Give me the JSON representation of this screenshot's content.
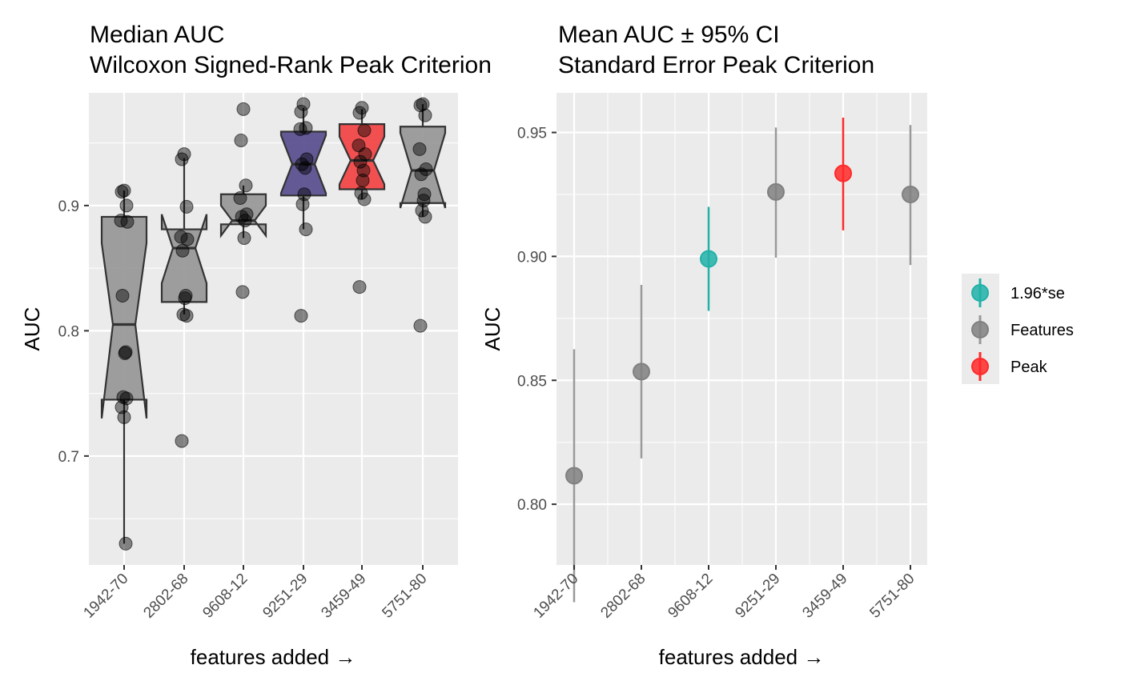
{
  "colors": {
    "panel_bg": "#EBEBEB",
    "grid": "#FFFFFF",
    "box_default": "#999999",
    "box_selected": "#5C5290",
    "box_peak": "#F24848",
    "point": "#000000",
    "se_color": "#21B1A8",
    "features_color": "#808080",
    "peak_color": "#FF2A2A",
    "text": "#000000",
    "tick_text": "#4D4D4D"
  },
  "chart_data": [
    {
      "type": "box",
      "title": "Median AUC",
      "subtitle": "Wilcoxon Signed-Rank Peak Criterion",
      "xlabel": "features added →",
      "ylabel": "AUC",
      "categories": [
        "1942-70",
        "2802-68",
        "9608-12",
        "9251-29",
        "3459-49",
        "5751-80"
      ],
      "ylim": [
        0.613,
        0.99
      ],
      "yticks": [
        0.7,
        0.8,
        0.9
      ],
      "ytick_labels": [
        "0.7",
        "0.8",
        "0.9"
      ],
      "grid": true,
      "boxes": [
        {
          "category": "1942-70",
          "q1": 0.745,
          "median": 0.805,
          "q3": 0.891,
          "notch_low": 0.73,
          "notch_high": 0.87,
          "whisker_low": 0.63,
          "whisker_high": 0.912,
          "highlight": "none"
        },
        {
          "category": "2802-68",
          "q1": 0.823,
          "median": 0.866,
          "q3": 0.881,
          "notch_low": 0.838,
          "notch_high": 0.893,
          "whisker_low": 0.813,
          "whisker_high": 0.938,
          "highlight": "none"
        },
        {
          "category": "9608-12",
          "q1": 0.885,
          "median": 0.888,
          "q3": 0.909,
          "notch_low": 0.876,
          "notch_high": 0.9,
          "whisker_low": 0.874,
          "whisker_high": 0.916,
          "highlight": "none"
        },
        {
          "category": "9251-29",
          "q1": 0.908,
          "median": 0.933,
          "q3": 0.959,
          "notch_low": 0.91,
          "notch_high": 0.956,
          "whisker_low": 0.881,
          "whisker_high": 0.978,
          "highlight": "selected"
        },
        {
          "category": "3459-49",
          "q1": 0.913,
          "median": 0.936,
          "q3": 0.965,
          "notch_low": 0.917,
          "notch_high": 0.955,
          "whisker_low": 0.905,
          "whisker_high": 0.977,
          "highlight": "peak"
        },
        {
          "category": "5751-80",
          "q1": 0.902,
          "median": 0.928,
          "q3": 0.963,
          "notch_low": 0.898,
          "notch_high": 0.958,
          "whisker_low": 0.891,
          "whisker_high": 0.981,
          "highlight": "none"
        }
      ],
      "points": [
        {
          "category": "1942-70",
          "values": [
            0.912,
            0.911,
            0.9,
            0.888,
            0.887,
            0.828,
            0.783,
            0.782,
            0.747,
            0.746,
            0.739,
            0.731,
            0.63
          ]
        },
        {
          "category": "2802-68",
          "values": [
            0.941,
            0.937,
            0.899,
            0.875,
            0.873,
            0.864,
            0.828,
            0.826,
            0.813,
            0.812,
            0.712
          ]
        },
        {
          "category": "9608-12",
          "values": [
            0.977,
            0.952,
            0.916,
            0.906,
            0.893,
            0.891,
            0.888,
            0.874,
            0.831
          ]
        },
        {
          "category": "9251-29",
          "values": [
            0.981,
            0.975,
            0.962,
            0.961,
            0.937,
            0.933,
            0.93,
            0.909,
            0.901,
            0.881,
            0.812
          ]
        },
        {
          "category": "3459-49",
          "values": [
            0.978,
            0.974,
            0.96,
            0.948,
            0.941,
            0.935,
            0.928,
            0.92,
            0.91,
            0.905,
            0.835
          ]
        },
        {
          "category": "5751-80",
          "values": [
            0.981,
            0.98,
            0.972,
            0.945,
            0.929,
            0.925,
            0.909,
            0.904,
            0.896,
            0.891,
            0.804
          ]
        }
      ]
    },
    {
      "type": "scatter",
      "title": "Mean AUC ± 95% CI",
      "subtitle": "Standard Error Peak Criterion",
      "xlabel": "features added →",
      "ylabel": "AUC",
      "categories": [
        "1942-70",
        "2802-68",
        "9608-12",
        "9251-29",
        "3459-49",
        "5751-80"
      ],
      "ylim": [
        0.7755,
        0.966
      ],
      "yticks": [
        0.8,
        0.85,
        0.9,
        0.95
      ],
      "ytick_labels": [
        "0.80",
        "0.85",
        "0.90",
        "0.95"
      ],
      "grid": true,
      "points": [
        {
          "category": "1942-70",
          "mean": 0.8115,
          "lower": 0.7605,
          "upper": 0.8625,
          "group": "Features"
        },
        {
          "category": "2802-68",
          "mean": 0.8535,
          "lower": 0.8185,
          "upper": 0.8885,
          "group": "Features"
        },
        {
          "category": "9608-12",
          "mean": 0.899,
          "lower": 0.878,
          "upper": 0.92,
          "group": "1.96*se"
        },
        {
          "category": "9251-29",
          "mean": 0.926,
          "lower": 0.8995,
          "upper": 0.952,
          "group": "Features"
        },
        {
          "category": "3459-49",
          "mean": 0.9335,
          "lower": 0.9105,
          "upper": 0.956,
          "group": "Peak"
        },
        {
          "category": "5751-80",
          "mean": 0.925,
          "lower": 0.8965,
          "upper": 0.953,
          "group": "Features"
        }
      ],
      "legend": {
        "position": "right",
        "entries": [
          {
            "label": "1.96*se",
            "group": "1.96*se"
          },
          {
            "label": "Features",
            "group": "Features"
          },
          {
            "label": "Peak",
            "group": "Peak"
          }
        ]
      }
    }
  ]
}
